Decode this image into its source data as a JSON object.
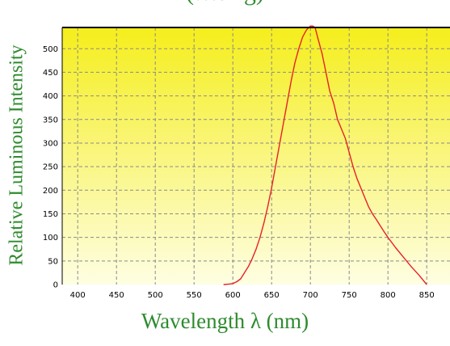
{
  "title_fragment": "(…ting)",
  "chart_data": {
    "type": "line",
    "title": "",
    "xlabel": "Wavelength λ (nm)",
    "ylabel": "Relative Luminous Intensity",
    "xlim": [
      380,
      880
    ],
    "ylim": [
      0,
      545
    ],
    "xticks": [
      400,
      450,
      500,
      550,
      600,
      650,
      700,
      750,
      800,
      850
    ],
    "yticks": [
      0,
      50,
      100,
      150,
      200,
      250,
      300,
      350,
      400,
      450,
      500
    ],
    "grid": true,
    "colors": {
      "line": "#e8202a",
      "background_top": "#f5ee1c",
      "background_bottom": "#fefee2",
      "grid": "#8a8a8a",
      "label_text": "#2e8b2e"
    },
    "series": [
      {
        "x": [
          588,
          595,
          600,
          605,
          610,
          615,
          620,
          625,
          630,
          635,
          640,
          645,
          650,
          655,
          660,
          665,
          670,
          675,
          680,
          685,
          690,
          695,
          700,
          703,
          706,
          710,
          715,
          720,
          725,
          730,
          735,
          740,
          745,
          750,
          755,
          760,
          765,
          770,
          775,
          780,
          785,
          790,
          795,
          800,
          810,
          820,
          830,
          840,
          850
        ],
        "y": [
          0,
          1,
          2,
          6,
          12,
          25,
          38,
          55,
          75,
          100,
          130,
          165,
          205,
          250,
          295,
          340,
          385,
          430,
          470,
          500,
          525,
          540,
          548,
          548,
          545,
          520,
          490,
          450,
          410,
          385,
          350,
          330,
          310,
          280,
          250,
          225,
          205,
          185,
          165,
          150,
          138,
          125,
          112,
          100,
          78,
          58,
          38,
          20,
          0
        ]
      }
    ]
  }
}
